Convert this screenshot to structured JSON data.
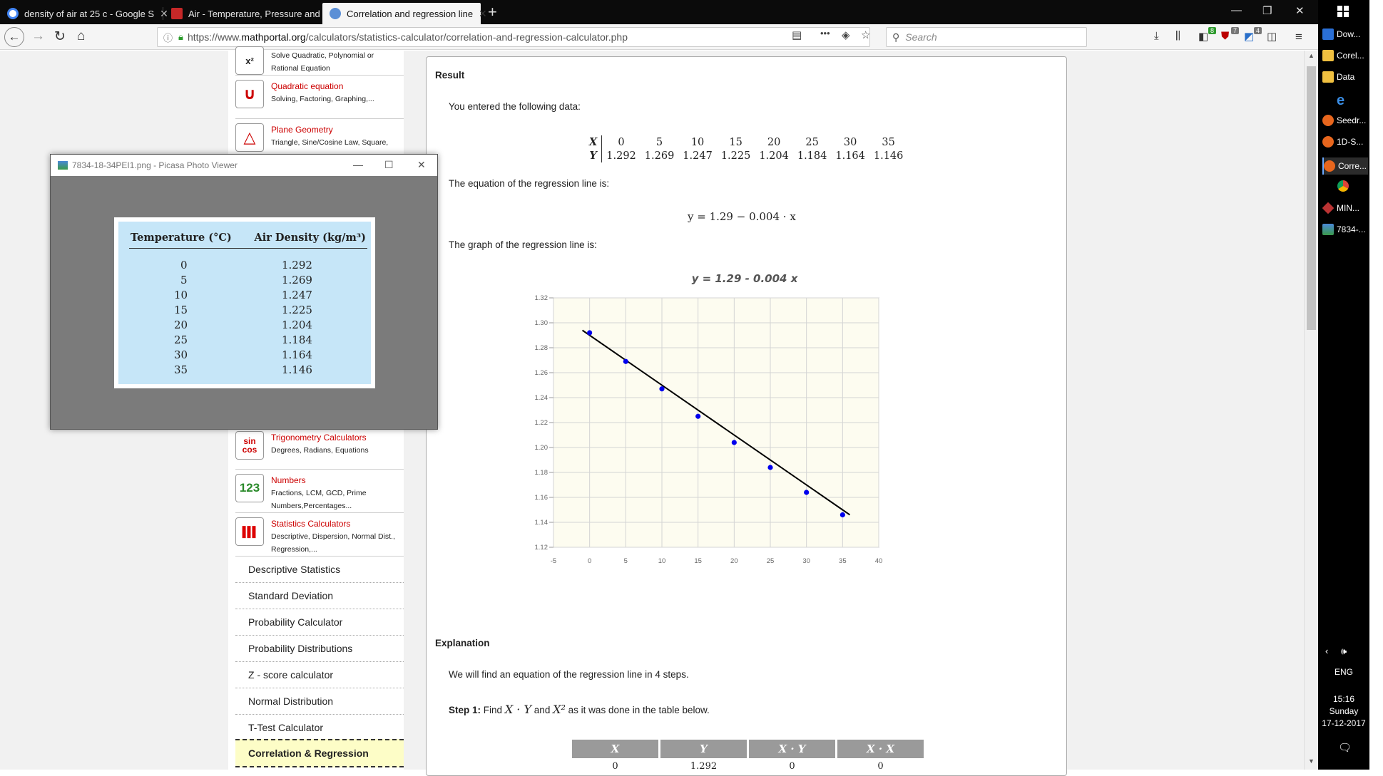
{
  "browser": {
    "tabs": [
      {
        "title": "density of air at 25 c - Google S",
        "close": "✕"
      },
      {
        "title": "Air - Temperature, Pressure and",
        "close": "✕"
      },
      {
        "title": "Correlation and regression line",
        "close": "✕"
      }
    ],
    "new_tab": "+",
    "url_host_prefix": "https://www.",
    "url_host": "mathportal.org",
    "url_path": "/calculators/statistics-calculator/correlation-and-regression-calculator.php",
    "search_placeholder": "Search",
    "more_menu": "•••",
    "badges": [
      "8",
      "7",
      "4"
    ],
    "window_controls": [
      "—",
      "❐",
      "✕"
    ]
  },
  "sidebar": {
    "categories": [
      {
        "title": "",
        "desc": "Solve Quadratic, Polynomial or Rational Equation",
        "icon": "x²"
      },
      {
        "title": "Quadratic equation",
        "desc": "Solving, Factoring, Graphing,...",
        "icon": "∪"
      },
      {
        "title": "Plane Geometry",
        "desc": "Triangle, Sine/Cosine Law, Square,",
        "icon": "△"
      },
      {
        "title": "Trigonometry Calculators",
        "desc": "Degrees, Radians, Equations",
        "icon": "sin cos"
      },
      {
        "title": "Numbers",
        "desc": "Fractions, LCM, GCD, Prime Numbers,Percentages...",
        "icon": "123"
      },
      {
        "title": "Statistics Calculators",
        "desc": "Descriptive, Dispersion, Normal Dist., Regression,...",
        "icon": "▌▌▌"
      }
    ],
    "menu": [
      "Descriptive Statistics",
      "Standard Deviation",
      "Probability Calculator",
      "Probability Distributions",
      "Z - score calculator",
      "Normal Distribution",
      "T-Test Calculator",
      "Correlation & Regression"
    ]
  },
  "content": {
    "result_heading": "Result",
    "entered_text": "You entered the following data:",
    "data_x_label": "X",
    "data_y_label": "Y",
    "data_x": [
      "0",
      "5",
      "10",
      "15",
      "20",
      "25",
      "30",
      "35"
    ],
    "data_y": [
      "1.292",
      "1.269",
      "1.247",
      "1.225",
      "1.204",
      "1.184",
      "1.164",
      "1.146"
    ],
    "equation_text": "The equation of the regression line is:",
    "equation_display": "y = 1.29 − 0.004 · x",
    "graph_text": "The graph of the regression line is:",
    "explanation_heading": "Explanation",
    "explanation_text": "We will find an equation of the regression line in 4 steps.",
    "step1_label": "Step 1:",
    "step1_find": "Find",
    "step1_xy": "X · Y",
    "step1_and": "and",
    "step1_x2": "X²",
    "step1_rest": "as it was done in the table below.",
    "calc_table_headers": [
      "X",
      "Y",
      "X · Y",
      "X · X"
    ],
    "calc_table_first_row": [
      "0",
      "1.292",
      "0",
      "0"
    ]
  },
  "chart_data": {
    "type": "scatter",
    "title": "y = 1.29 - 0.004 x",
    "x": [
      0,
      5,
      10,
      15,
      20,
      25,
      30,
      35
    ],
    "y": [
      1.292,
      1.269,
      1.247,
      1.225,
      1.204,
      1.184,
      1.164,
      1.146
    ],
    "regression_line": {
      "slope": -0.004,
      "intercept": 1.29,
      "x_range": [
        -1,
        36
      ]
    },
    "xlim": [
      -5,
      40
    ],
    "ylim": [
      1.12,
      1.32
    ],
    "x_ticks": [
      -5,
      0,
      5,
      10,
      15,
      20,
      25,
      30,
      35,
      40
    ],
    "y_ticks": [
      "1.12",
      "1.14",
      "1.16",
      "1.18",
      "1.20",
      "1.22",
      "1.24",
      "1.26",
      "1.28",
      "1.30",
      "1.32"
    ],
    "grid": true,
    "point_color": "#0000ee",
    "line_color": "#000000",
    "plot_bg": "#fdfcf0"
  },
  "picasa": {
    "title": "7834-18-34PEI1.png - Picasa Photo Viewer",
    "col1": "Temperature (°C)",
    "col2": "Air Density (kg/m³)",
    "rows": [
      [
        "0",
        "1.292"
      ],
      [
        "5",
        "1.269"
      ],
      [
        "10",
        "1.247"
      ],
      [
        "15",
        "1.225"
      ],
      [
        "20",
        "1.204"
      ],
      [
        "25",
        "1.184"
      ],
      [
        "30",
        "1.164"
      ],
      [
        "35",
        "1.146"
      ]
    ]
  },
  "taskbar": {
    "items": [
      "Dow...",
      "Corel...",
      "Data",
      "",
      "Seedr...",
      "1D-S...",
      "Corre...",
      "",
      "MIN...",
      "7834-..."
    ],
    "tray": "ENG",
    "time": "15:16",
    "day": "Sunday",
    "date": "17-12-2017"
  }
}
